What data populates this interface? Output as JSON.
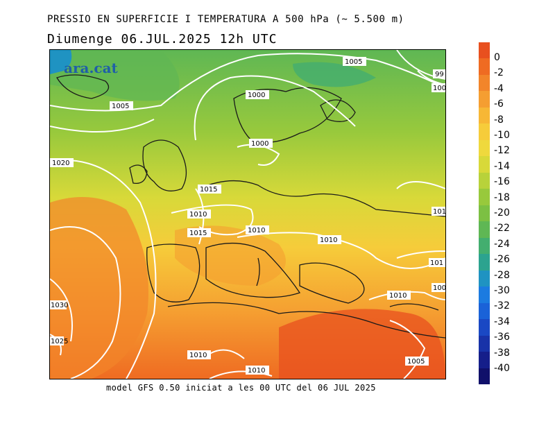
{
  "title_line1": "PRESSIO EN SUPERFICIE I TEMPERATURA A 500 hPa (~ 5.500 m)",
  "title_line2": "Diumenge  06.JUL.2025 12h UTC",
  "brand": "ara.cat",
  "footer": "model GFS 0.50 iniciat a les 00 UTC del 06 JUL 2025",
  "colorbar": {
    "labels": [
      "0",
      "-2",
      "-4",
      "-6",
      "-8",
      "-10",
      "-12",
      "-14",
      "-16",
      "-18",
      "-20",
      "-22",
      "-24",
      "-26",
      "-28",
      "-30",
      "-32",
      "-34",
      "-36",
      "-38",
      "-40"
    ],
    "colors": [
      "#e8501f",
      "#ef6b22",
      "#f2852a",
      "#f59e31",
      "#f7b735",
      "#f6cc3a",
      "#efd93d",
      "#d8d939",
      "#b8d23a",
      "#98c93c",
      "#7cc043",
      "#5fb754",
      "#43ae6f",
      "#2ca38f",
      "#1f93c2",
      "#1b7be0",
      "#1a62d8",
      "#1a48c4",
      "#1832a8",
      "#151e8a",
      "#10106a"
    ]
  },
  "isobars": [
    "1005",
    "1000",
    "1005",
    "1000",
    "1020",
    "1015",
    "1010",
    "1015",
    "1010",
    "1010",
    "1010",
    "1030",
    "1025",
    "1010",
    "1010",
    "1010",
    "1005",
    "99",
    "100",
    "101",
    "101",
    "100"
  ],
  "palette": {
    "land_outline": "#1a1a1a",
    "isobar": "#ffffff"
  }
}
